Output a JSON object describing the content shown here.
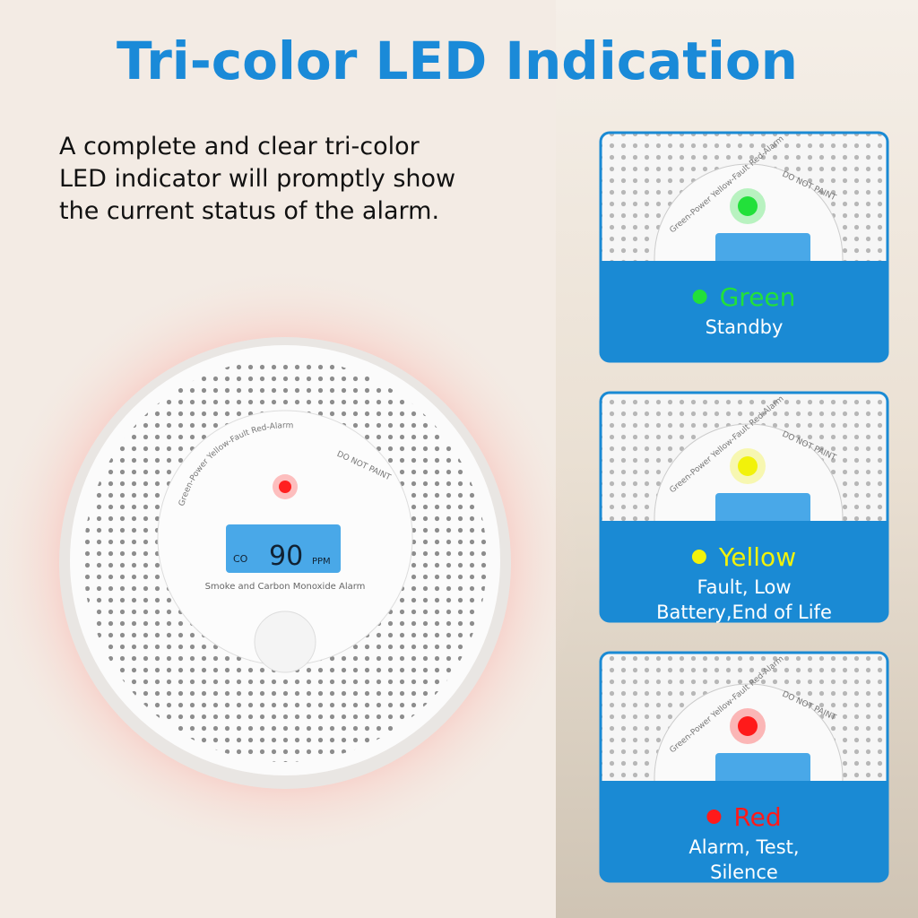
{
  "header": {
    "title": "Tri-color LED Indication"
  },
  "description": {
    "lines": [
      "A complete and clear tri-color",
      "LED indicator will promptly show",
      "the current status of the alarm."
    ]
  },
  "device": {
    "led_legend": "Green-Power Yellow-Fault Red-Alarm",
    "warning": "DO NOT PAINT",
    "display_label": "CO",
    "display_value": 90,
    "display_unit": "PPM",
    "product_name": "Smoke and Carbon Monoxide Alarm"
  },
  "cards": [
    {
      "color_name": "Green",
      "led_color": "#22e03a",
      "status_lines": [
        "Standby"
      ]
    },
    {
      "color_name": "Yellow",
      "led_color": "#f2f20a",
      "status_lines": [
        "Fault, Low",
        "Battery,End of Life"
      ]
    },
    {
      "color_name": "Red",
      "led_color": "#ff1a1a",
      "status_lines": [
        "Alarm, Test,",
        "Silence"
      ]
    }
  ]
}
